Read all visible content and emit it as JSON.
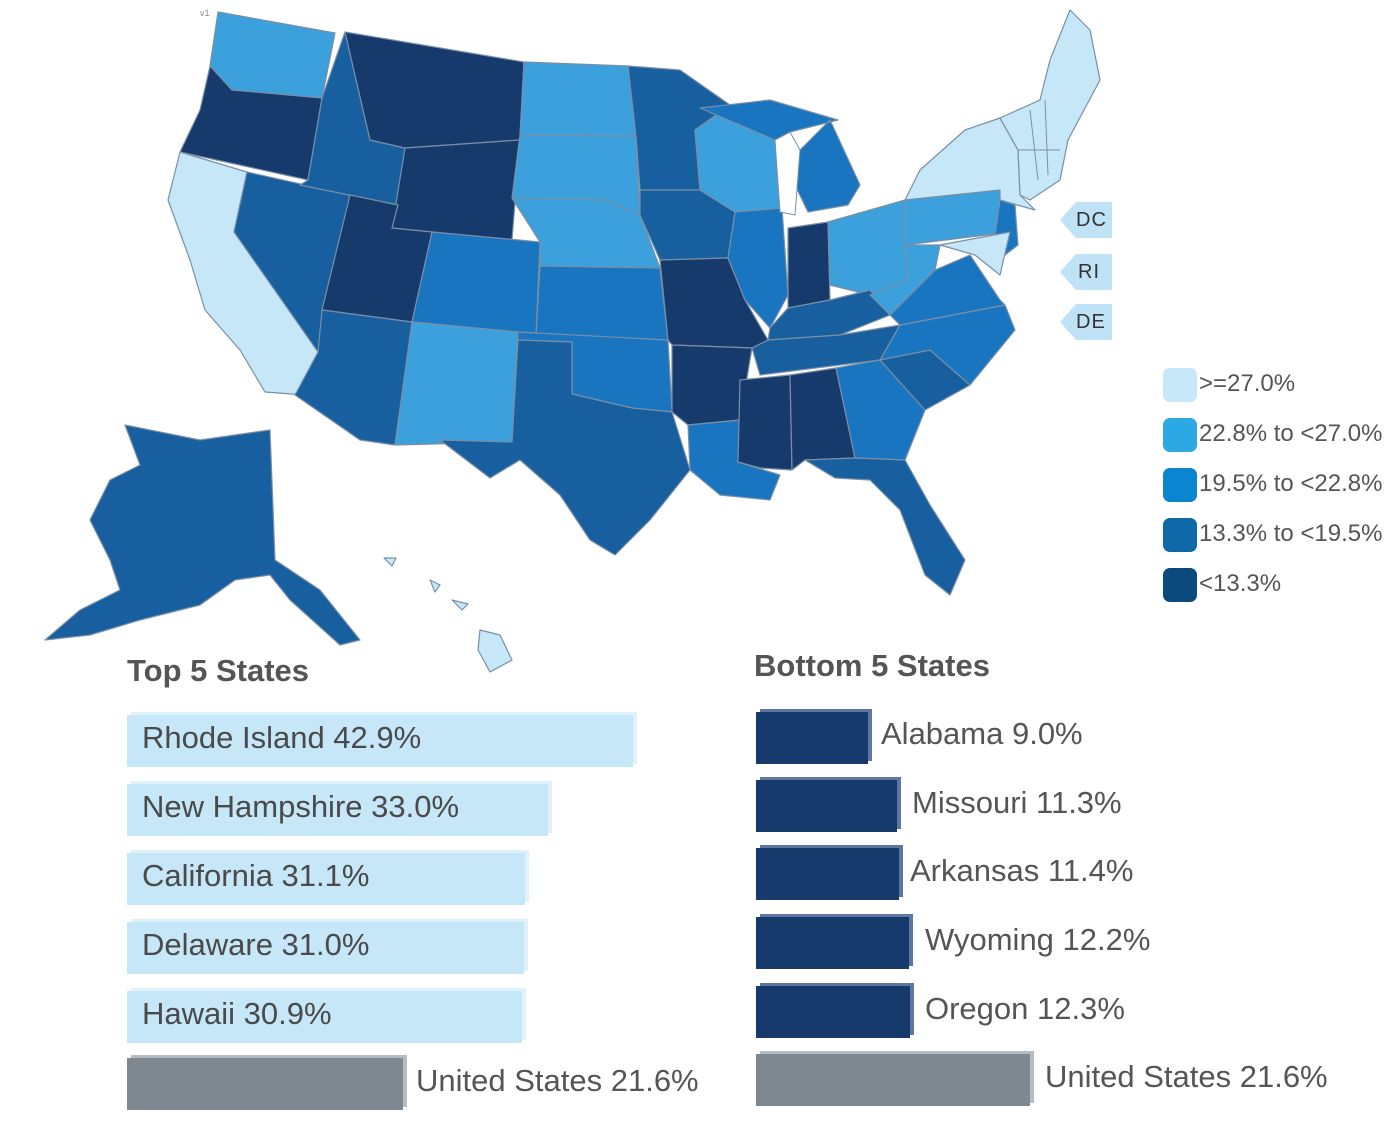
{
  "map": {
    "version_mark": "v1",
    "colors": {
      "gte_27": "#c6e7f8",
      "22_8_to_27": "#3ba0dc",
      "19_5_to_22_8": "#1a75c0",
      "13_3_to_19_5": "#175f9e",
      "lt_13_3": "#173a6d",
      "small_state_tag": "#bfe2f7"
    },
    "state_tags": [
      {
        "label": "DC"
      },
      {
        "label": "RI"
      },
      {
        "label": "DE"
      }
    ]
  },
  "legend": {
    "items": [
      {
        "label": ">=27.0%",
        "color": "#c6e7f8"
      },
      {
        "label": "22.8% to <27.0%",
        "color": "#2ca9e4"
      },
      {
        "label": "19.5% to <22.8%",
        "color": "#0a85cf"
      },
      {
        "label": "13.3% to <19.5%",
        "color": "#0f68a8"
      },
      {
        "label": "<13.3%",
        "color": "#0a4a7c"
      }
    ]
  },
  "top5": {
    "title": "Top 5 States",
    "items": [
      {
        "label": "Rhode Island 42.9%",
        "value": 42.9
      },
      {
        "label": "New Hampshire 33.0%",
        "value": 33.0
      },
      {
        "label": "California 31.1%",
        "value": 31.1
      },
      {
        "label": "Delaware 31.0%",
        "value": 31.0
      },
      {
        "label": "Hawaii 30.9%",
        "value": 30.9
      }
    ],
    "us": {
      "label": "United States 21.6%",
      "value": 21.6
    }
  },
  "bottom5": {
    "title": "Bottom 5 States",
    "items": [
      {
        "label": "Alabama 9.0%",
        "value": 9.0
      },
      {
        "label": "Missouri 11.3%",
        "value": 11.3
      },
      {
        "label": "Arkansas 11.4%",
        "value": 11.4
      },
      {
        "label": "Wyoming 12.2%",
        "value": 12.2
      },
      {
        "label": "Oregon 12.3%",
        "value": 12.3
      }
    ],
    "us": {
      "label": "United States 21.6%",
      "value": 21.6
    }
  }
}
